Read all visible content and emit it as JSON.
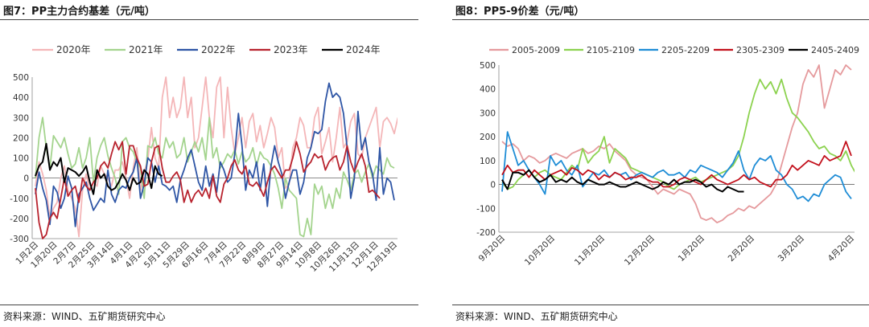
{
  "charts": [
    {
      "title": "图7：PP主力合约基差（元/吨）",
      "source": "资料来源：WIND、五矿期货研究中心"
    },
    {
      "title": "图8：PP5-9价差（元/吨）",
      "source": "资料来源：WIND、五矿期货研究中心"
    }
  ],
  "chart_data": [
    {
      "type": "line",
      "title": "PP主力合约基差（元/吨）",
      "x_ticks": [
        "1月2日",
        "1月20日",
        "2月7日",
        "2月25日",
        "3月14日",
        "4月1日",
        "4月20日",
        "5月11日",
        "5月29日",
        "6月16日",
        "7月4日",
        "7月22日",
        "8月9日",
        "8月27日",
        "9月14日",
        "10月8日",
        "10月26日",
        "11月13日",
        "12月1日",
        "12月19日"
      ],
      "ylim": [
        -300,
        500
      ],
      "y_ticks": [
        -300,
        -200,
        -100,
        0,
        100,
        200,
        300,
        400,
        500
      ],
      "legend_position": "top",
      "series": [
        {
          "name": "2020年",
          "color": "#f4b6b8",
          "values": [
            -40,
            80,
            20,
            -60,
            -200,
            -150,
            -120,
            0,
            60,
            -60,
            -100,
            -150,
            -290,
            -60,
            20,
            -60,
            -20,
            -40,
            60,
            20,
            0,
            -40,
            40,
            40,
            80,
            0,
            -100,
            50,
            150,
            -60,
            30,
            90,
            250,
            100,
            50,
            400,
            520,
            300,
            400,
            300,
            350,
            500,
            300,
            400,
            150,
            200,
            350,
            500,
            300,
            200,
            450,
            500,
            200,
            450,
            250,
            120,
            200,
            300,
            150,
            280,
            320,
            180,
            260,
            150,
            220,
            300,
            250,
            100,
            150,
            -50,
            -30,
            150,
            200,
            300,
            260,
            150,
            150,
            300,
            350,
            120,
            180,
            250,
            80,
            200,
            350,
            150,
            180,
            280,
            320,
            120,
            100,
            200,
            250,
            300,
            350,
            150,
            280,
            300,
            270,
            220,
            300
          ]
        },
        {
          "name": "2021年",
          "color": "#a4d48e",
          "values": [
            0,
            200,
            300,
            150,
            50,
            210,
            180,
            150,
            200,
            120,
            50,
            70,
            150,
            50,
            100,
            200,
            -20,
            100,
            160,
            200,
            110,
            50,
            0,
            -80,
            180,
            200,
            150,
            130,
            80,
            50,
            -100,
            160,
            150,
            200,
            120,
            100,
            200,
            150,
            180,
            100,
            120,
            200,
            80,
            130,
            180,
            130,
            200,
            90,
            300,
            100,
            150,
            50,
            80,
            120,
            100,
            140,
            70,
            130,
            80,
            100,
            150,
            60,
            130,
            100,
            90,
            60,
            20,
            -50,
            -150,
            0,
            -60,
            -80,
            -100,
            -280,
            -290,
            -200,
            -280,
            -30,
            -80,
            -40,
            -150,
            -80,
            -150,
            -50,
            -100,
            30,
            -10,
            -60,
            20,
            40,
            -20,
            30,
            70,
            0,
            60,
            40,
            20,
            100,
            60,
            50
          ]
        },
        {
          "name": "2022年",
          "color": "#2e55a5",
          "values": [
            -80,
            30,
            -50,
            -110,
            -230,
            -40,
            -70,
            -150,
            -100,
            10,
            -50,
            -240,
            -80,
            -50,
            -20,
            -100,
            -160,
            -130,
            -100,
            -120,
            40,
            -80,
            -120,
            -60,
            -40,
            -50,
            0,
            30,
            100,
            -100,
            -30,
            100,
            80,
            -20,
            60,
            -30,
            -40,
            -60,
            -40,
            -120,
            -10,
            40,
            100,
            140,
            60,
            -20,
            -60,
            60,
            -40,
            20,
            -70,
            80,
            40,
            -20,
            0,
            120,
            320,
            160,
            -60,
            40,
            0,
            80,
            -60,
            70,
            -140,
            60,
            160,
            80,
            20,
            -100,
            -20,
            40,
            40,
            -80,
            -20,
            100,
            150,
            230,
            220,
            240,
            380,
            470,
            400,
            420,
            400,
            320,
            150,
            -100,
            0,
            330,
            140,
            200,
            80,
            20,
            -110,
            150,
            -80,
            0,
            -20,
            -110
          ]
        },
        {
          "name": "2023年",
          "color": "#b8232e",
          "values": [
            -50,
            -220,
            -300,
            -280,
            -200,
            -170,
            -200,
            -100,
            0,
            -90,
            -60,
            -40,
            -120,
            0,
            -40,
            -60,
            -20,
            0,
            60,
            80,
            50,
            120,
            180,
            140,
            180,
            20,
            160,
            160,
            100,
            60,
            -40,
            -30,
            80,
            150,
            160,
            50,
            -20,
            -20,
            10,
            30,
            -10,
            -120,
            -60,
            -120,
            -80,
            -60,
            -90,
            -50,
            -100,
            10,
            -90,
            -120,
            -30,
            0,
            60,
            90,
            40,
            20,
            60,
            -30,
            -40,
            -20,
            -50,
            -90,
            -20,
            40,
            60,
            30,
            0,
            40,
            40,
            100,
            180,
            120,
            30,
            60,
            80,
            120,
            100,
            110,
            40,
            80,
            100,
            110,
            40,
            80,
            160,
            80,
            30,
            80,
            120,
            60,
            -70,
            -60,
            -80,
            -100
          ]
        },
        {
          "name": "2024年",
          "color": "#000000",
          "values": [
            10,
            60,
            80,
            170,
            40,
            80,
            60,
            100,
            -20,
            50,
            40,
            30,
            10,
            30,
            60,
            -20,
            -80,
            40,
            0,
            20,
            -40,
            -60,
            -50,
            -20,
            20,
            -10,
            -60,
            0,
            -30,
            -20,
            40,
            20,
            -50,
            60,
            20,
            10
          ]
        }
      ]
    },
    {
      "type": "line",
      "title": "PP5-9价差（元/吨）",
      "x_ticks": [
        "9月20日",
        "10月20日",
        "11月20日",
        "12月20日",
        "1月20日",
        "2月20日",
        "3月20日",
        "4月20日"
      ],
      "ylim": [
        -200,
        500
      ],
      "y_ticks": [
        -200,
        -100,
        0,
        100,
        200,
        300,
        400,
        500
      ],
      "legend_position": "top",
      "series": [
        {
          "name": "2005-2009",
          "color": "#e59a9d",
          "values": [
            180,
            160,
            170,
            150,
            100,
            120,
            110,
            90,
            100,
            120,
            130,
            120,
            110,
            130,
            140,
            150,
            130,
            140,
            160,
            150,
            170,
            140,
            120,
            100,
            60,
            40,
            30,
            20,
            -10,
            -40,
            -20,
            -30,
            -40,
            -20,
            -30,
            -40,
            -80,
            -140,
            -150,
            -140,
            -160,
            -150,
            -130,
            -120,
            -100,
            -110,
            -90,
            -100,
            -80,
            -60,
            -40,
            0,
            80,
            160,
            240,
            300,
            420,
            480,
            450,
            500,
            320,
            400,
            480,
            460,
            500,
            480
          ]
        },
        {
          "name": "2105-2109",
          "color": "#8cd24f",
          "values": [
            10,
            -20,
            -10,
            20,
            40,
            60,
            30,
            50,
            60,
            40,
            30,
            20,
            50,
            80,
            60,
            150,
            90,
            120,
            140,
            200,
            90,
            150,
            130,
            110,
            70,
            60,
            50,
            40,
            30,
            20,
            10,
            -10,
            -20,
            0,
            10,
            20,
            30,
            10,
            20,
            30,
            40,
            50,
            60,
            80,
            120,
            200,
            300,
            380,
            440,
            400,
            430,
            380,
            440,
            360,
            300,
            280,
            250,
            220,
            180,
            150,
            160,
            130,
            120,
            100,
            140,
            80,
            40
          ]
        },
        {
          "name": "2205-2209",
          "color": "#1f8dd6",
          "values": [
            -30,
            220,
            150,
            80,
            100,
            60,
            30,
            0,
            -40,
            120,
            80,
            100,
            60,
            40,
            80,
            -10,
            20,
            50,
            40,
            60,
            30,
            50,
            40,
            50,
            20,
            40,
            50,
            40,
            30,
            50,
            60,
            40,
            40,
            50,
            30,
            60,
            50,
            80,
            70,
            60,
            50,
            30,
            60,
            90,
            140,
            60,
            20,
            80,
            110,
            100,
            120,
            60,
            40,
            0,
            -20,
            -60,
            -50,
            -70,
            -40,
            -50,
            0,
            20,
            40,
            30,
            -30,
            -60
          ]
        },
        {
          "name": "2305-2309",
          "color": "#c3121d",
          "values": [
            40,
            80,
            50,
            60,
            60,
            30,
            60,
            40,
            20,
            40,
            50,
            60,
            40,
            70,
            60,
            40,
            60,
            50,
            20,
            40,
            30,
            50,
            40,
            20,
            30,
            30,
            40,
            20,
            10,
            10,
            -10,
            -10,
            0,
            20,
            30,
            20,
            10,
            0,
            20,
            40,
            20,
            10,
            0,
            10,
            20,
            40,
            20,
            30,
            10,
            0,
            -10,
            20,
            20,
            40,
            80,
            60,
            80,
            100,
            90,
            80,
            120,
            100,
            110,
            120,
            180,
            120
          ]
        },
        {
          "name": "2405-2409",
          "color": "#000000",
          "values": [
            20,
            -20,
            50,
            50,
            40,
            60,
            30,
            10,
            20,
            40,
            10,
            20,
            10,
            30,
            10,
            0,
            20,
            10,
            0,
            0,
            10,
            0,
            -10,
            -10,
            0,
            10,
            0,
            -10,
            -20,
            -10,
            10,
            0,
            20,
            0,
            10,
            10,
            20,
            10,
            -10,
            0,
            -20,
            -30,
            -10,
            -20,
            -30,
            -30
          ]
        }
      ]
    }
  ]
}
